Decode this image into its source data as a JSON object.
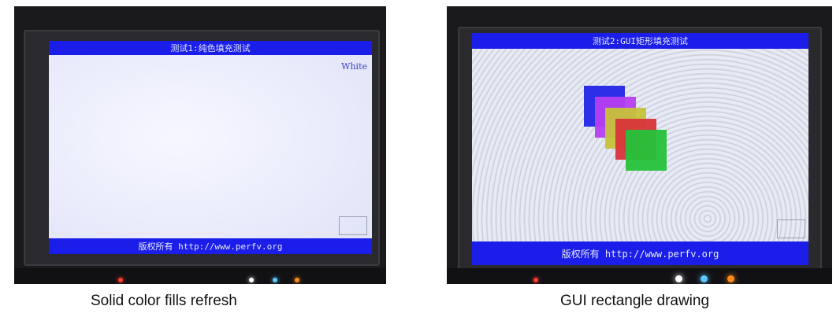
{
  "photos": [
    {
      "screen_title": "测试1:纯色填充测试",
      "corner_label": "White",
      "footer": "版权所有 http://www.perfv.org",
      "caption": "Solid color fills refresh"
    },
    {
      "screen_title": "测试2:GUI矩形填充测试",
      "footer": "版权所有 http://www.perfv.org",
      "caption": "GUI rectangle drawing",
      "rect_colors": [
        "#2326e6",
        "#b53ff0",
        "#c6c23a",
        "#d8343a",
        "#25c23a"
      ]
    }
  ],
  "colors": {
    "bar_blue": "#1a1ee8",
    "led_red": "#ff3b2f",
    "led_white": "#ffffff",
    "led_blue": "#5ec8ff",
    "led_orange": "#ff8a1a"
  }
}
